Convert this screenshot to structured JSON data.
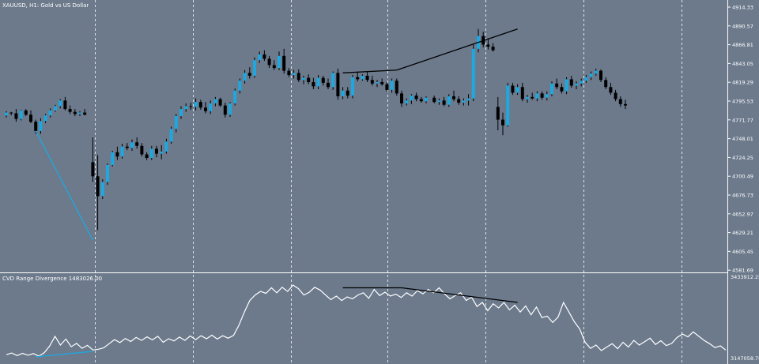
{
  "main_pane": {
    "symbol_label": "XAUUSD, H1:  Gold vs US Dollar",
    "price_labels": [
      "4914.33",
      "4890.57",
      "4866.81",
      "4843.05",
      "4819.29",
      "4795.53",
      "4771.77",
      "4748.01",
      "4724.25",
      "4700.49",
      "4676.73",
      "4652.97",
      "4629.21",
      "4605.45",
      "4581.69"
    ]
  },
  "indicator_pane": {
    "title": "CVD Range Divergence 1483026.00",
    "top_value": "3433912.25",
    "bottom_value": "3147058.76"
  },
  "colors": {
    "background": "#6c7a8c",
    "bull_candle": "#1ea8e0",
    "bear_candle": "#000000",
    "cvd_line": "#ffffff",
    "bull_divergence": "#1ea8e0",
    "bear_divergence": "#000000",
    "grid": "#ffffff"
  },
  "chart_data": [
    {
      "type": "candlestick",
      "title": "XAUUSD, H1:  Gold vs US Dollar",
      "y_axis": "right",
      "ylim": [
        4570,
        4920
      ],
      "candles": [
        [
          4766,
          4772,
          4763,
          4770
        ],
        [
          4770,
          4771,
          4766,
          4769
        ],
        [
          4769,
          4775,
          4757,
          4761
        ],
        [
          4761,
          4774,
          4759,
          4773
        ],
        [
          4773,
          4775,
          4765,
          4767
        ],
        [
          4767,
          4773,
          4755,
          4757
        ],
        [
          4757,
          4760,
          4740,
          4744
        ],
        [
          4744,
          4762,
          4740,
          4758
        ],
        [
          4758,
          4768,
          4755,
          4766
        ],
        [
          4766,
          4776,
          4763,
          4773
        ],
        [
          4773,
          4781,
          4771,
          4779
        ],
        [
          4779,
          4789,
          4776,
          4787
        ],
        [
          4787,
          4792,
          4773,
          4775
        ],
        [
          4775,
          4780,
          4768,
          4771
        ],
        [
          4771,
          4775,
          4765,
          4768
        ],
        [
          4768,
          4772,
          4765,
          4770
        ],
        [
          4770,
          4775,
          4766,
          4767
        ],
        [
          4700,
          4735,
          4672,
          4680
        ],
        [
          4680,
          4710,
          4604,
          4652
        ],
        [
          4652,
          4676,
          4648,
          4672
        ],
        [
          4672,
          4698,
          4668,
          4696
        ],
        [
          4696,
          4716,
          4694,
          4714
        ],
        [
          4714,
          4722,
          4703,
          4708
        ],
        [
          4708,
          4726,
          4705,
          4722
        ],
        [
          4722,
          4727,
          4717,
          4720
        ],
        [
          4720,
          4732,
          4716,
          4728
        ],
        [
          4728,
          4735,
          4719,
          4723
        ],
        [
          4723,
          4727,
          4708,
          4711
        ],
        [
          4711,
          4714,
          4703,
          4706
        ],
        [
          4706,
          4723,
          4703,
          4719
        ],
        [
          4719,
          4723,
          4707,
          4712
        ],
        [
          4712,
          4724,
          4704,
          4715
        ],
        [
          4715,
          4733,
          4712,
          4729
        ],
        [
          4729,
          4750,
          4726,
          4747
        ],
        [
          4747,
          4768,
          4742,
          4765
        ],
        [
          4765,
          4779,
          4761,
          4775
        ],
        [
          4775,
          4783,
          4771,
          4779
        ],
        [
          4779,
          4784,
          4774,
          4778
        ],
        [
          4778,
          4790,
          4773,
          4785
        ],
        [
          4785,
          4788,
          4774,
          4777
        ],
        [
          4777,
          4785,
          4769,
          4772
        ],
        [
          4772,
          4787,
          4768,
          4783
        ],
        [
          4783,
          4792,
          4779,
          4789
        ],
        [
          4789,
          4791,
          4778,
          4780
        ],
        [
          4780,
          4784,
          4763,
          4767
        ],
        [
          4767,
          4785,
          4764,
          4783
        ],
        [
          4783,
          4804,
          4780,
          4801
        ],
        [
          4801,
          4818,
          4797,
          4815
        ],
        [
          4815,
          4830,
          4811,
          4826
        ],
        [
          4826,
          4834,
          4818,
          4822
        ],
        [
          4822,
          4848,
          4819,
          4844
        ],
        [
          4844,
          4856,
          4840,
          4852
        ],
        [
          4852,
          4858,
          4843,
          4846
        ],
        [
          4846,
          4850,
          4833,
          4837
        ],
        [
          4837,
          4844,
          4830,
          4833
        ],
        [
          4833,
          4856,
          4830,
          4850
        ],
        [
          4850,
          4860,
          4825,
          4829
        ],
        [
          4829,
          4833,
          4820,
          4823
        ],
        [
          4823,
          4830,
          4818,
          4826
        ],
        [
          4826,
          4831,
          4813,
          4816
        ],
        [
          4816,
          4822,
          4810,
          4819
        ],
        [
          4819,
          4824,
          4810,
          4813
        ],
        [
          4813,
          4819,
          4803,
          4807
        ],
        [
          4807,
          4823,
          4803,
          4819
        ],
        [
          4819,
          4822,
          4808,
          4812
        ],
        [
          4812,
          4818,
          4803,
          4806
        ],
        [
          4806,
          4828,
          4802,
          4826
        ],
        [
          4826,
          4832,
          4788,
          4793
        ],
        [
          4793,
          4806,
          4789,
          4801
        ],
        [
          4801,
          4806,
          4790,
          4794
        ],
        [
          4794,
          4823,
          4790,
          4820
        ],
        [
          4820,
          4828,
          4814,
          4817
        ],
        [
          4817,
          4824,
          4815,
          4822
        ],
        [
          4822,
          4828,
          4813,
          4816
        ],
        [
          4816,
          4822,
          4808,
          4811
        ],
        [
          4811,
          4816,
          4806,
          4813
        ],
        [
          4813,
          4818,
          4808,
          4810
        ],
        [
          4810,
          4813,
          4799,
          4802
        ],
        [
          4802,
          4818,
          4798,
          4815
        ],
        [
          4815,
          4818,
          4794,
          4797
        ],
        [
          4797,
          4801,
          4778,
          4783
        ],
        [
          4783,
          4790,
          4780,
          4787
        ],
        [
          4787,
          4796,
          4782,
          4794
        ],
        [
          4794,
          4798,
          4786,
          4789
        ],
        [
          4789,
          4792,
          4784,
          4786
        ],
        [
          4786,
          4793,
          4783,
          4791
        ],
        [
          4791,
          4794,
          4783,
          4785
        ],
        [
          4785,
          4790,
          4781,
          4787
        ],
        [
          4787,
          4792,
          4779,
          4781
        ],
        [
          4781,
          4796,
          4778,
          4793
        ],
        [
          4793,
          4801,
          4786,
          4789
        ],
        [
          4789,
          4793,
          4781,
          4784
        ],
        [
          4784,
          4790,
          4780,
          4787
        ],
        [
          4787,
          4796,
          4780,
          4790
        ],
        [
          4790,
          4866,
          4786,
          4860
        ],
        [
          4860,
          4888,
          4855,
          4878
        ],
        [
          4878,
          4884,
          4862,
          4866
        ],
        [
          4866,
          4875,
          4859,
          4863
        ],
        [
          4863,
          4868,
          4856,
          4858
        ],
        [
          4778,
          4792,
          4745,
          4760
        ],
        [
          4760,
          4770,
          4738,
          4752
        ],
        [
          4752,
          4812,
          4750,
          4808
        ],
        [
          4808,
          4812,
          4795,
          4798
        ],
        [
          4798,
          4810,
          4795,
          4806
        ],
        [
          4806,
          4812,
          4786,
          4789
        ],
        [
          4789,
          4795,
          4784,
          4792
        ],
        [
          4792,
          4798,
          4788,
          4790
        ],
        [
          4790,
          4800,
          4786,
          4797
        ],
        [
          4797,
          4800,
          4788,
          4791
        ],
        [
          4791,
          4800,
          4787,
          4796
        ],
        [
          4796,
          4814,
          4793,
          4811
        ],
        [
          4811,
          4818,
          4803,
          4806
        ],
        [
          4806,
          4811,
          4797,
          4800
        ],
        [
          4800,
          4820,
          4796,
          4817
        ],
        [
          4817,
          4822,
          4805,
          4808
        ],
        [
          4808,
          4814,
          4803,
          4811
        ],
        [
          4811,
          4818,
          4807,
          4815
        ],
        [
          4815,
          4823,
          4812,
          4820
        ],
        [
          4820,
          4828,
          4816,
          4825
        ],
        [
          4825,
          4832,
          4822,
          4829
        ],
        [
          4829,
          4831,
          4813,
          4816
        ],
        [
          4816,
          4820,
          4803,
          4806
        ],
        [
          4806,
          4812,
          4795,
          4798
        ],
        [
          4798,
          4802,
          4786,
          4789
        ],
        [
          4789,
          4793,
          4778,
          4782
        ],
        [
          4782,
          4788,
          4775,
          4780
        ]
      ],
      "gaps_after": [
        16,
        85
      ],
      "trend_lines": [
        {
          "series": "price",
          "color": "bull_divergence",
          "from": [
            6,
            4744
          ],
          "to": [
            17,
            4590
          ]
        },
        {
          "series": "price",
          "color": "bear_divergence",
          "from": [
            68,
            4826
          ],
          "to": [
            79,
            4830
          ]
        },
        {
          "series": "price",
          "color": "bear_divergence",
          "from": [
            79,
            4830
          ],
          "to": [
            103,
            4888
          ]
        }
      ]
    },
    {
      "type": "line",
      "title": "CVD Range Divergence 1483026.00",
      "ylim": [
        3147058.76,
        3433912.25
      ],
      "series": [
        {
          "color": "cvd_line",
          "values": [
            3155000,
            3161000,
            3152000,
            3160000,
            3153000,
            3159000,
            3150000,
            3162000,
            3186000,
            3222000,
            3190000,
            3212000,
            3184000,
            3196000,
            3178000,
            3189000,
            3172000,
            3175000,
            3180000,
            3195000,
            3210000,
            3199000,
            3214000,
            3203000,
            3218000,
            3207000,
            3220000,
            3209000,
            3222000,
            3200000,
            3213000,
            3205000,
            3219000,
            3207000,
            3223000,
            3210000,
            3224000,
            3213000,
            3226000,
            3212000,
            3224000,
            3215000,
            3225000,
            3262000,
            3310000,
            3352000,
            3372000,
            3385000,
            3378000,
            3398000,
            3380000,
            3400000,
            3385000,
            3408000,
            3395000,
            3372000,
            3382000,
            3400000,
            3390000,
            3372000,
            3355000,
            3368000,
            3352000,
            3365000,
            3358000,
            3372000,
            3380000,
            3360000,
            3392000,
            3370000,
            3382000,
            3368000,
            3375000,
            3363000,
            3380000,
            3368000,
            3388000,
            3376000,
            3392000,
            3380000,
            3398000,
            3376000,
            3358000,
            3370000,
            3380000,
            3352000,
            3364000,
            3330000,
            3345000,
            3315000,
            3340000,
            3325000,
            3345000,
            3318000,
            3335000,
            3310000,
            3332000,
            3300000,
            3328000,
            3290000,
            3295000,
            3272000,
            3292000,
            3345000,
            3310000,
            3275000,
            3248000,
            3200000,
            3178000,
            3190000,
            3170000,
            3183000,
            3195000,
            3177000,
            3200000,
            3183000,
            3207000,
            3190000,
            3202000,
            3215000,
            3192000,
            3206000,
            3188000,
            3196000,
            3218000,
            3230000,
            3220000,
            3238000,
            3222000,
            3207000,
            3195000,
            3181000,
            3187000,
            3172000
          ]
        }
      ],
      "trend_lines": [
        {
          "series": "cvd",
          "color": "bull_divergence",
          "from": [
            6,
            3147500
          ],
          "to": [
            17,
            3167000
          ]
        },
        {
          "series": "cvd",
          "color": "bear_divergence",
          "from": [
            68,
            3398000
          ],
          "to": [
            80,
            3398000
          ]
        },
        {
          "series": "cvd",
          "color": "bear_divergence",
          "from": [
            80,
            3398000
          ],
          "to": [
            103,
            3345000
          ]
        }
      ]
    }
  ]
}
